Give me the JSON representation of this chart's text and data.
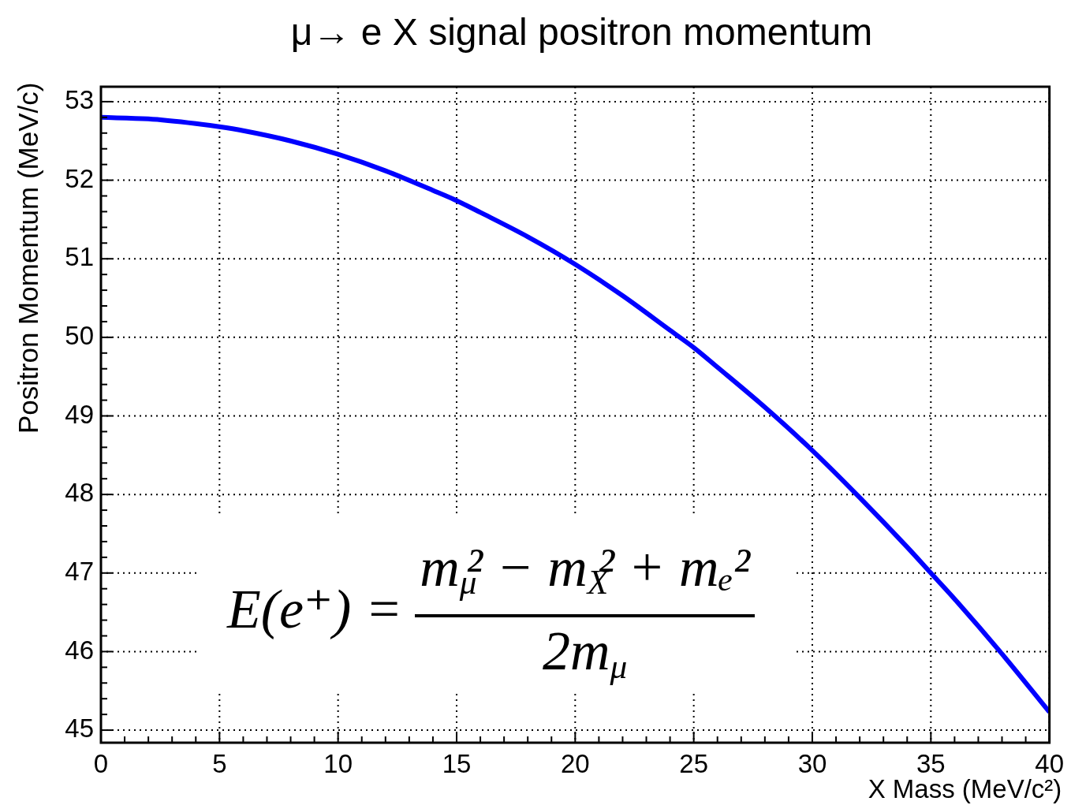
{
  "chart_data": {
    "type": "line",
    "title": "μ→ e X signal positron momentum",
    "xlabel": "X Mass (MeV/c²)",
    "ylabel": "Positron Momentum (MeV/c)",
    "annotations": [
      "E(e⁺) =",
      "m$_{μ}$² − m$_{X}$² + mₑ²",
      "2m$_{μ}$"
    ],
    "x": [
      0,
      2,
      4,
      5,
      6,
      8,
      10,
      12,
      14,
      15,
      16,
      18,
      20,
      22,
      24,
      25,
      26,
      28,
      30,
      32,
      34,
      35,
      36,
      38,
      40
    ],
    "series": [
      {
        "color": "#0000ff",
        "values": [
          52.8,
          52.78,
          52.72,
          52.68,
          52.63,
          52.5,
          52.33,
          52.12,
          51.87,
          51.74,
          51.59,
          51.28,
          50.93,
          50.53,
          50.09,
          49.87,
          49.62,
          49.11,
          48.56,
          47.96,
          47.33,
          47.0,
          46.67,
          45.97,
          45.23
        ]
      }
    ],
    "xlim": [
      0,
      40
    ],
    "ylim": [
      44.84,
      53.19
    ],
    "xticks": [
      0,
      {
        "value": 1,
        "label": null
      },
      {
        "value": 2,
        "label": null
      },
      {
        "value": 3,
        "label": null
      },
      {
        "value": 4,
        "label": null
      },
      5,
      {
        "value": 6,
        "label": null
      },
      {
        "value": 7,
        "label": null
      },
      {
        "value": 8,
        "label": null
      },
      {
        "value": 9,
        "label": null
      },
      10,
      {
        "value": 11,
        "label": null
      },
      {
        "value": 12,
        "label": null
      },
      {
        "value": 13,
        "label": null
      },
      {
        "value": 14,
        "label": null
      },
      15,
      {
        "value": 16,
        "label": null
      },
      {
        "value": 17,
        "label": null
      },
      {
        "value": 18,
        "label": null
      },
      {
        "value": 19,
        "label": null
      },
      20,
      {
        "value": 21,
        "label": null
      },
      {
        "value": 22,
        "label": null
      },
      {
        "value": 23,
        "label": null
      },
      {
        "value": 24,
        "label": null
      },
      25,
      {
        "value": 26,
        "label": null
      },
      {
        "value": 27,
        "label": null
      },
      {
        "value": 28,
        "label": null
      },
      {
        "value": 29,
        "label": null
      },
      30,
      {
        "value": 31,
        "label": null
      },
      {
        "value": 32,
        "label": null
      },
      {
        "value": 33,
        "label": null
      },
      {
        "value": 34,
        "label": null
      },
      35,
      {
        "value": 36,
        "label": null
      },
      {
        "value": 37,
        "label": null
      },
      {
        "value": 38,
        "label": null
      },
      {
        "value": 39,
        "label": null
      },
      40
    ],
    "yticks": [
      45,
      {
        "value": 45.2,
        "label": null
      },
      {
        "value": 45.4,
        "label": null
      },
      {
        "value": 45.6,
        "label": null
      },
      {
        "value": 45.8,
        "label": null
      },
      46,
      {
        "value": 46.2,
        "label": null
      },
      {
        "value": 46.4,
        "label": null
      },
      {
        "value": 46.6,
        "label": null
      },
      {
        "value": 46.8,
        "label": null
      },
      47,
      {
        "value": 47.2,
        "label": null
      },
      {
        "value": 47.4,
        "label": null
      },
      {
        "value": 47.6,
        "label": null
      },
      {
        "value": 47.8,
        "label": null
      },
      48,
      {
        "value": 48.2,
        "label": null
      },
      {
        "value": 48.4,
        "label": null
      },
      {
        "value": 48.6,
        "label": null
      },
      {
        "value": 48.8,
        "label": null
      },
      49,
      {
        "value": 49.2,
        "label": null
      },
      {
        "value": 49.4,
        "label": null
      },
      {
        "value": 49.6,
        "label": null
      },
      {
        "value": 49.8,
        "label": null
      },
      50,
      {
        "value": 50.2,
        "label": null
      },
      {
        "value": 50.4,
        "label": null
      },
      {
        "value": 50.6,
        "label": null
      },
      {
        "value": 50.8,
        "label": null
      },
      51,
      {
        "value": 51.2,
        "label": null
      },
      {
        "value": 51.4,
        "label": null
      },
      {
        "value": 51.6,
        "label": null
      },
      {
        "value": 51.8,
        "label": null
      },
      52,
      {
        "value": 52.2,
        "label": null
      },
      {
        "value": 52.4,
        "label": null
      },
      {
        "value": 52.6,
        "label": null
      },
      {
        "value": 52.8,
        "label": null
      },
      53
    ],
    "grid": true
  }
}
